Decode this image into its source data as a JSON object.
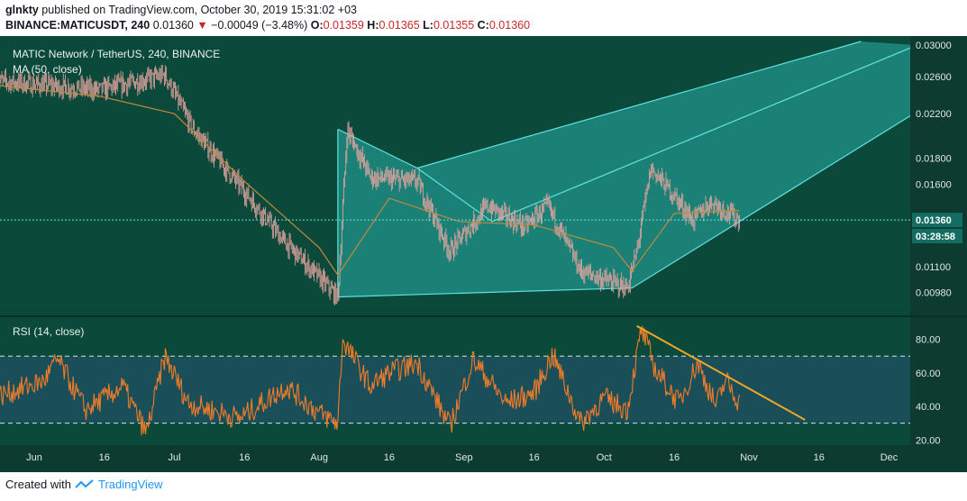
{
  "header": {
    "user": "glnkty",
    "published": "published on TradingView.com, October 30, 2019 15:31:02 +03",
    "symbol_interval": "BINANCE:MATICUSDT, 240",
    "last": "0.01360",
    "change": "−0.00049 (−3.48%)",
    "o_label": "O:",
    "o": "0.01359",
    "h_label": "H:",
    "h": "0.01365",
    "l_label": "L:",
    "l": "0.01355",
    "c_label": "C:",
    "c": "0.01360"
  },
  "footer": {
    "created_with": "Created with",
    "brand": "TradingView"
  },
  "colors": {
    "background": "#0b4a3a",
    "rsi_band": "#1a4f5a",
    "channel_line": "#5fe3e0",
    "channel_fill": "#2ec4c0",
    "candle": "#e9a5a1",
    "ma": "#c08a3a",
    "rsi_line": "#ef7b29",
    "trendline": "#f5a623",
    "price_tag": "#136d62"
  },
  "chart_data": [
    {
      "type": "candlestick",
      "title": "MATIC Network / TetherUS, 240, BINANCE",
      "indicator": "MA (50, close)",
      "y_ticks": [
        "0.03000",
        "0.02600",
        "0.02200",
        "0.01800",
        "0.01600",
        "0.01100",
        "0.00980"
      ],
      "y_scale": "log",
      "ylim": [
        0.0092,
        0.0305
      ],
      "x_ticks": [
        "Jun",
        "16",
        "Jul",
        "16",
        "Aug",
        "16",
        "Sep",
        "16",
        "Oct",
        "16",
        "Nov",
        "16",
        "Dec"
      ],
      "current_price": "0.01360",
      "countdown": "03:28:58",
      "key_points": [
        {
          "date": "2019-05-24",
          "price": 0.0255
        },
        {
          "date": "2019-06-15",
          "price": 0.0245
        },
        {
          "date": "2019-06-29",
          "price": 0.0262
        },
        {
          "date": "2019-07-05",
          "price": 0.0205
        },
        {
          "date": "2019-07-16",
          "price": 0.0155
        },
        {
          "date": "2019-07-24",
          "price": 0.0125
        },
        {
          "date": "2019-08-05",
          "price": 0.0096
        },
        {
          "date": "2019-08-07",
          "price": 0.0205
        },
        {
          "date": "2019-08-12",
          "price": 0.0165
        },
        {
          "date": "2019-08-22",
          "price": 0.0162
        },
        {
          "date": "2019-08-29",
          "price": 0.0118
        },
        {
          "date": "2019-09-06",
          "price": 0.0145
        },
        {
          "date": "2019-09-14",
          "price": 0.0132
        },
        {
          "date": "2019-09-19",
          "price": 0.0145
        },
        {
          "date": "2019-09-26",
          "price": 0.0108
        },
        {
          "date": "2019-10-06",
          "price": 0.01
        },
        {
          "date": "2019-10-08",
          "price": 0.0118
        },
        {
          "date": "2019-10-11",
          "price": 0.0172
        },
        {
          "date": "2019-10-16",
          "price": 0.0152
        },
        {
          "date": "2019-10-20",
          "price": 0.0136
        },
        {
          "date": "2019-10-24",
          "price": 0.0148
        },
        {
          "date": "2019-10-30",
          "price": 0.0136
        }
      ],
      "ma_points": [
        {
          "date": "2019-05-24",
          "price": 0.025
        },
        {
          "date": "2019-06-15",
          "price": 0.0238
        },
        {
          "date": "2019-07-01",
          "price": 0.022
        },
        {
          "date": "2019-07-16",
          "price": 0.0162
        },
        {
          "date": "2019-08-01",
          "price": 0.012
        },
        {
          "date": "2019-08-05",
          "price": 0.0106
        },
        {
          "date": "2019-08-16",
          "price": 0.015
        },
        {
          "date": "2019-08-31",
          "price": 0.0135
        },
        {
          "date": "2019-09-16",
          "price": 0.0133
        },
        {
          "date": "2019-10-03",
          "price": 0.012
        },
        {
          "date": "2019-10-07",
          "price": 0.0108
        },
        {
          "date": "2019-10-16",
          "price": 0.014
        },
        {
          "date": "2019-10-30",
          "price": 0.0142
        }
      ],
      "channel": {
        "lower": [
          {
            "date": "2019-08-05",
            "price": 0.0096
          },
          {
            "date": "2019-10-07",
            "price": 0.01
          },
          {
            "date": "2019-12-07",
            "price": 0.0222
          }
        ],
        "upper": [
          {
            "date": "2019-08-05",
            "price": 0.0205
          },
          {
            "date": "2019-08-22",
            "price": 0.0172
          }
        ],
        "parallels": [
          {
            "from": {
              "date": "2019-08-22",
              "price": 0.0172
            },
            "to": {
              "date": "2019-11-25",
              "price": 0.0305
            }
          },
          {
            "from": {
              "date": "2019-09-07",
              "price": 0.0135
            },
            "to": {
              "date": "2019-12-07",
              "price": 0.03
            }
          }
        ]
      }
    },
    {
      "type": "line",
      "title": "RSI (14, close)",
      "y_ticks": [
        "80.00",
        "60.00",
        "40.00",
        "20.00"
      ],
      "ylim": [
        18,
        90
      ],
      "bands": [
        70,
        30
      ],
      "series": [
        {
          "points": [
            {
              "date": "2019-05-24",
              "value": 46
            },
            {
              "date": "2019-06-03",
              "value": 55
            },
            {
              "date": "2019-06-06",
              "value": 68
            },
            {
              "date": "2019-06-12",
              "value": 38
            },
            {
              "date": "2019-06-20",
              "value": 52
            },
            {
              "date": "2019-06-25",
              "value": 24
            },
            {
              "date": "2019-06-29",
              "value": 70
            },
            {
              "date": "2019-07-04",
              "value": 42
            },
            {
              "date": "2019-07-15",
              "value": 33
            },
            {
              "date": "2019-07-25",
              "value": 52
            },
            {
              "date": "2019-08-01",
              "value": 36
            },
            {
              "date": "2019-08-05",
              "value": 30
            },
            {
              "date": "2019-08-06",
              "value": 80
            },
            {
              "date": "2019-08-12",
              "value": 52
            },
            {
              "date": "2019-08-16",
              "value": 60
            },
            {
              "date": "2019-08-22",
              "value": 66
            },
            {
              "date": "2019-08-29",
              "value": 28
            },
            {
              "date": "2019-09-03",
              "value": 68
            },
            {
              "date": "2019-09-10",
              "value": 42
            },
            {
              "date": "2019-09-16",
              "value": 48
            },
            {
              "date": "2019-09-20",
              "value": 71
            },
            {
              "date": "2019-09-26",
              "value": 30
            },
            {
              "date": "2019-10-01",
              "value": 45
            },
            {
              "date": "2019-10-06",
              "value": 38
            },
            {
              "date": "2019-10-09",
              "value": 86
            },
            {
              "date": "2019-10-12",
              "value": 62
            },
            {
              "date": "2019-10-17",
              "value": 42
            },
            {
              "date": "2019-10-21",
              "value": 66
            },
            {
              "date": "2019-10-25",
              "value": 40
            },
            {
              "date": "2019-10-27",
              "value": 56
            },
            {
              "date": "2019-10-30",
              "value": 42
            }
          ]
        }
      ],
      "trendline": [
        {
          "date": "2019-10-08",
          "value": 88
        },
        {
          "date": "2019-11-13",
          "value": 32
        }
      ]
    }
  ]
}
